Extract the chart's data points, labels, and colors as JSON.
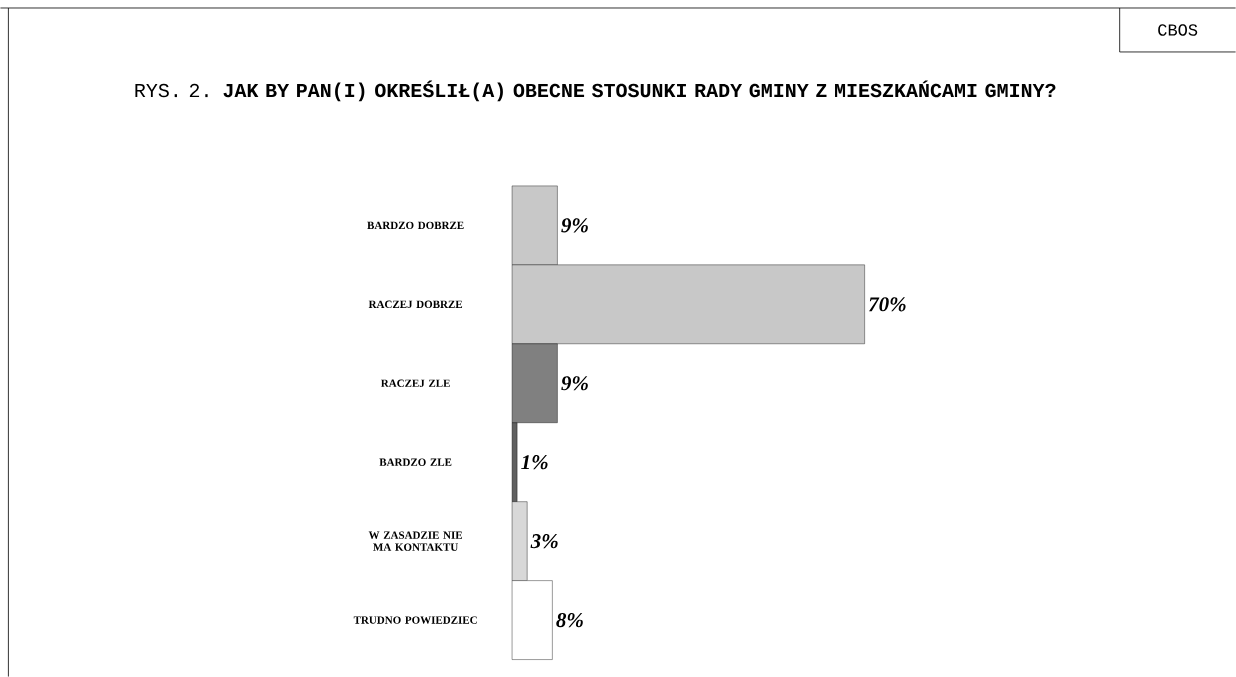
{
  "chart_data": {
    "type": "bar",
    "orientation": "horizontal",
    "title": "RYS. 2. **JAK BY PAN(I) OKREŚLIŁ(A) OBECNE STOSUNKI RADY GMINY Z MIESZKAŃCAMI GMINY?**",
    "categories": [
      "BARDZO DOBRZE",
      "RACZEJ DOBRZE",
      "RACZEJ ZLE",
      "BARDZO ZLE",
      "W ZASADZIE NIE MA KONTAKTU",
      "TRUDNO POWIEDZIEC"
    ],
    "values": [
      9,
      70,
      9,
      1,
      3,
      8
    ],
    "value_labels": [
      "9%",
      "70%",
      "9%",
      "1%",
      "3%",
      "8%"
    ],
    "colors": [
      "#c8c8c8",
      "#c8c8c8",
      "#808080",
      "#606060",
      "#d8d8d8",
      "#ffffff"
    ],
    "annotations": [
      "CBOS"
    ]
  }
}
